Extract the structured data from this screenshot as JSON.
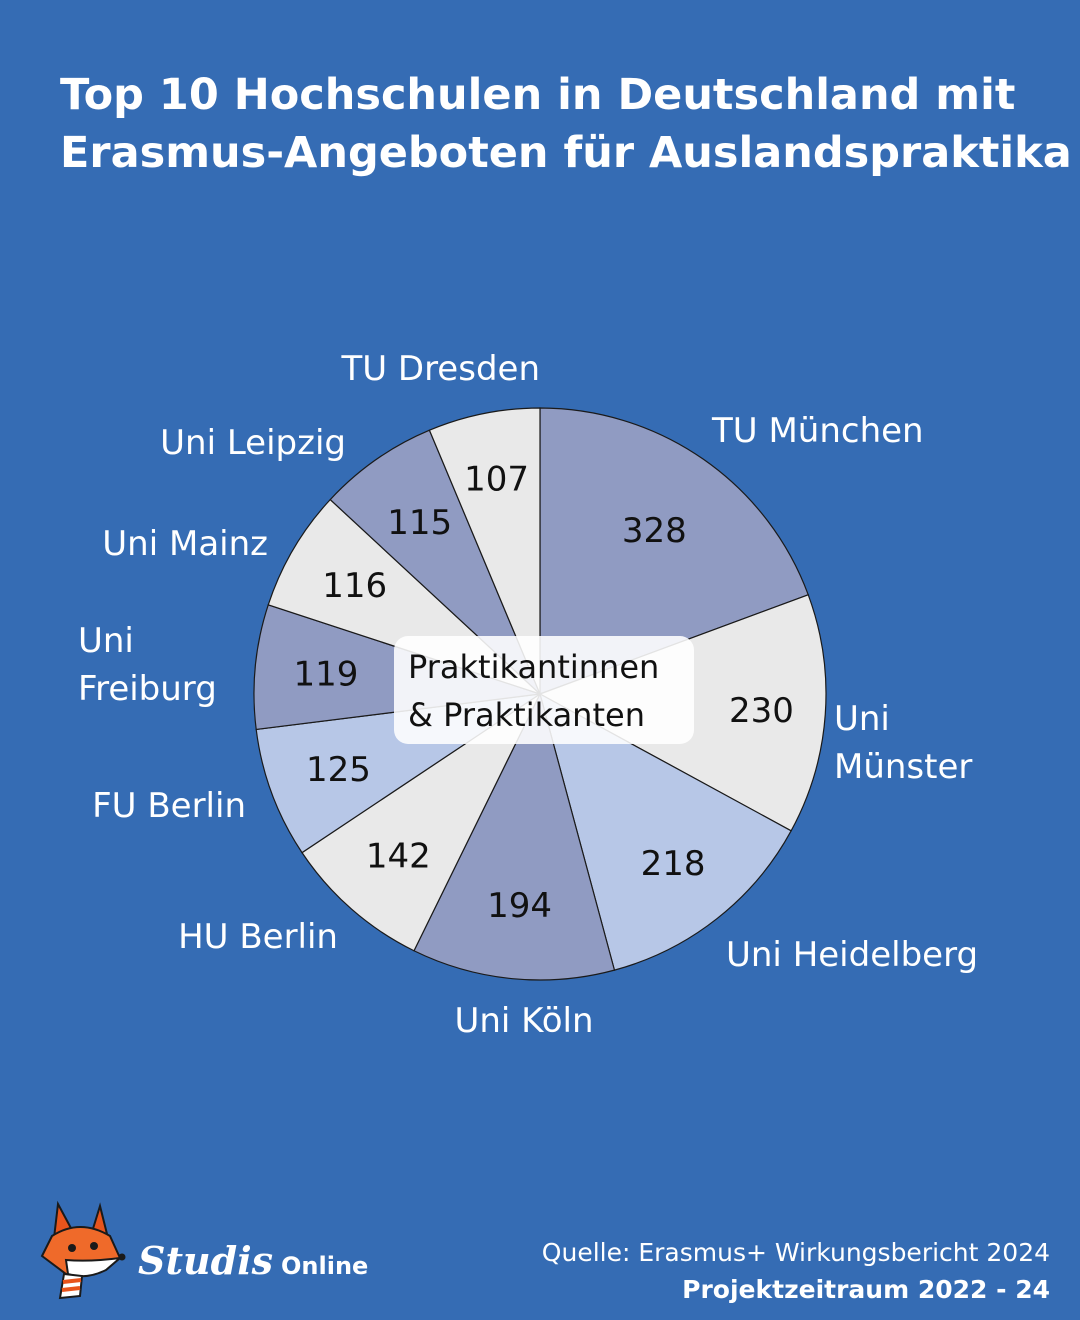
{
  "title_lines": [
    "Top 10 Hochschulen in Deutschland mit",
    "Erasmus-Angeboten für Auslandspraktika"
  ],
  "chart_data": {
    "type": "pie",
    "title": "Top 10 Hochschulen in Deutschland mit Erasmus-Angeboten für Auslandspraktika",
    "center_label": [
      "Praktikantinnen",
      "& Praktikanten"
    ],
    "categories": [
      "TU München",
      "Uni Münster",
      "Uni Heidelberg",
      "Uni Köln",
      "HU Berlin",
      "FU Berlin",
      "Uni Freiburg",
      "Uni Mainz",
      "Uni Leipzig",
      "TU Dresden"
    ],
    "label_lines": [
      [
        "TU München"
      ],
      [
        "Uni",
        "Münster"
      ],
      [
        "Uni Heidelberg"
      ],
      [
        "Uni Köln"
      ],
      [
        "HU Berlin"
      ],
      [
        "FU Berlin"
      ],
      [
        "Uni",
        "Freiburg"
      ],
      [
        "Uni Mainz"
      ],
      [
        "Uni Leipzig"
      ],
      [
        "TU Dresden"
      ]
    ],
    "values": [
      328,
      230,
      218,
      194,
      142,
      125,
      119,
      116,
      115,
      107
    ],
    "slice_colors": [
      "#909bc2",
      "#e9e9e9",
      "#b7c7e7",
      "#909bc2",
      "#e9e9e9",
      "#b7c7e7",
      "#909bc2",
      "#e9e9e9",
      "#909bc2",
      "#e9e9e9"
    ],
    "legend": "none"
  },
  "colors": {
    "background": "#356cb4",
    "text": "#ffffff",
    "slice_text": "#111111"
  },
  "brand": {
    "logo_icon": "fox-icon",
    "name": "Studis",
    "suffix": "Online"
  },
  "source": {
    "line1": "Quelle: Erasmus+ Wirkungsbericht 2024",
    "line2": "Projektzeitraum 2022 - 24"
  }
}
